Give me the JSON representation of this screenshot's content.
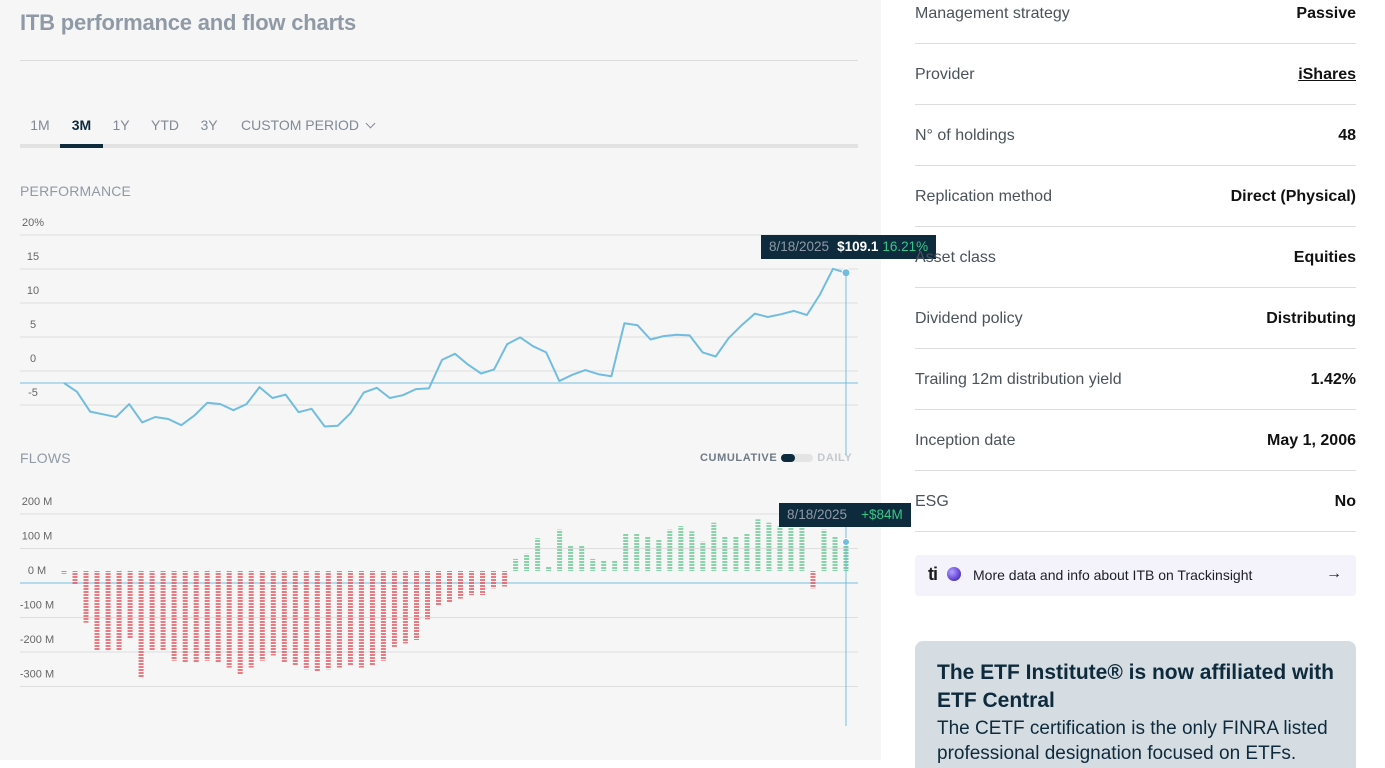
{
  "header": {
    "title": "ITB performance and flow charts"
  },
  "period_tabs": [
    {
      "label": "1M",
      "active": false
    },
    {
      "label": "3M",
      "active": true
    },
    {
      "label": "1Y",
      "active": false
    },
    {
      "label": "YTD",
      "active": false
    },
    {
      "label": "3Y",
      "active": false
    },
    {
      "label": "CUSTOM PERIOD",
      "active": false,
      "dropdown": true
    }
  ],
  "sections": {
    "performance_label": "PERFORMANCE",
    "flows_label": "FLOWS",
    "toggle_cumulative": "CUMULATIVE",
    "toggle_daily": "DAILY"
  },
  "performance_tooltip": {
    "date": "8/18/2025",
    "price": "$109.1",
    "change": "16.21%"
  },
  "flows_tooltip": {
    "date": "8/18/2025",
    "value": "+$84M"
  },
  "chart_data": [
    {
      "type": "line",
      "title": "PERFORMANCE",
      "y_ticks": [
        "20%",
        "15",
        "10",
        "5",
        "0",
        "-5"
      ],
      "ylim": [
        -7,
        21
      ],
      "values": [
        0,
        -1.3,
        -4.2,
        -4.6,
        -5.0,
        -3.1,
        -5.8,
        -5.0,
        -5.3,
        -6.2,
        -4.8,
        -2.9,
        -3.1,
        -4.0,
        -3.1,
        -0.6,
        -2.2,
        -1.7,
        -4.3,
        -3.8,
        -6.4,
        -6.3,
        -4.4,
        -1.4,
        -0.7,
        -2.2,
        -1.8,
        -0.9,
        -0.8,
        3.4,
        4.3,
        2.7,
        1.4,
        2.0,
        5.7,
        6.7,
        5.4,
        4.5,
        0.3,
        1.2,
        1.9,
        1.3,
        1.0,
        8.8,
        8.5,
        6.4,
        6.9,
        7.1,
        7.0,
        4.5,
        3.9,
        6.6,
        8.5,
        10.2,
        9.7,
        10.1,
        10.6,
        10.0,
        13.0,
        16.8,
        16.21
      ],
      "color": "#71bde0"
    },
    {
      "type": "bar",
      "title": "FLOWS",
      "y_ticks": [
        "200 M",
        "100 M",
        "0 M",
        "-100 M",
        "-200 M",
        "-300 M"
      ],
      "ylim": [
        -350,
        230
      ],
      "values": [
        -8,
        -38,
        -150,
        -230,
        -230,
        -230,
        -195,
        -310,
        -230,
        -230,
        -260,
        -265,
        -265,
        -260,
        -265,
        -280,
        -300,
        -280,
        -260,
        -245,
        -265,
        -275,
        -285,
        -290,
        -285,
        -280,
        -275,
        -280,
        -275,
        -260,
        -220,
        -210,
        -200,
        -140,
        -100,
        -90,
        -80,
        -70,
        -70,
        -50,
        -45,
        35,
        50,
        95,
        12,
        120,
        75,
        75,
        35,
        30,
        30,
        110,
        110,
        100,
        90,
        120,
        130,
        115,
        85,
        140,
        100,
        100,
        110,
        150,
        140,
        130,
        180,
        140,
        -50,
        120,
        100,
        84
      ],
      "positive_color": "#63c78f",
      "negative_color": "#e3525a"
    }
  ],
  "info": [
    {
      "label": "Management strategy",
      "value": "Passive"
    },
    {
      "label": "Provider",
      "value": "iShares",
      "link": true
    },
    {
      "label": "N° of holdings",
      "value": "48"
    },
    {
      "label": "Replication method",
      "value": "Direct (Physical)"
    },
    {
      "label": "Asset class",
      "value": "Equities"
    },
    {
      "label": "Dividend policy",
      "value": "Distributing"
    },
    {
      "label": "Trailing 12m distribution yield",
      "value": "1.42%"
    },
    {
      "label": "Inception date",
      "value": "May 1, 2006"
    },
    {
      "label": "ESG",
      "value": "No"
    }
  ],
  "trackinsight": {
    "logo": "ti",
    "text": "More data and info about ITB on Trackinsight",
    "arrow": "→"
  },
  "cetf": {
    "title": "The ETF Institute® is now affiliated with ETF Central",
    "body": "The CETF certification is the only FINRA listed professional designation focused on ETFs."
  }
}
